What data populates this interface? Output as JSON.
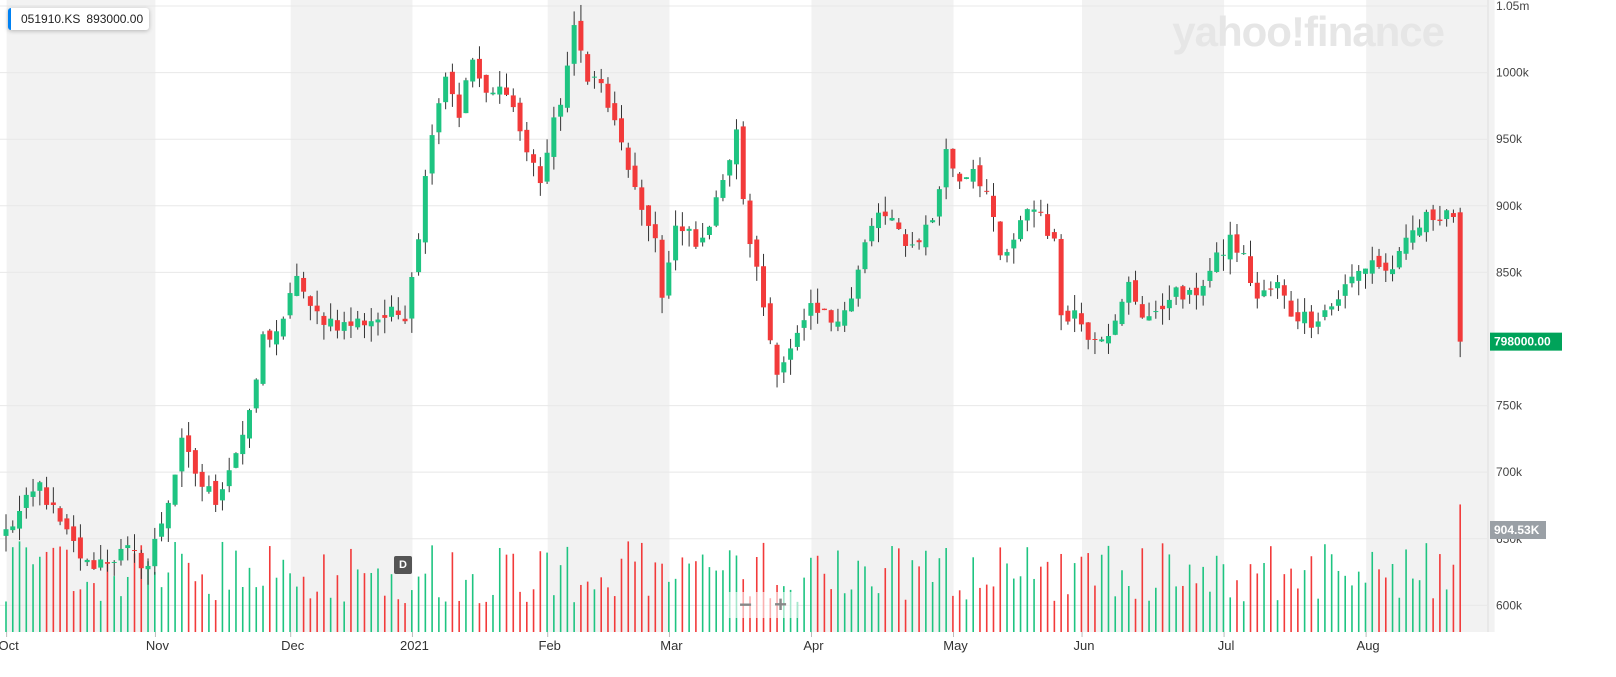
{
  "legend": {
    "symbol": "051910.KS",
    "price": "893000.00",
    "accent": "#0081f2"
  },
  "logo": "yahoo!finance",
  "interval_badge": "D",
  "zoom": {
    "minus": "−",
    "plus": "+"
  },
  "price_tag": {
    "label": "798000.00",
    "color": "#00a35a"
  },
  "volume_tag": {
    "label": "904.53K",
    "color": "#9aa0a6"
  },
  "colors": {
    "up": "#1ec481",
    "down": "#f23a3a",
    "band": "#f2f2f2"
  },
  "chart_data": {
    "type": "candlestick",
    "y_ticks": [
      "1.05m",
      "1000k",
      "950k",
      "900k",
      "850k",
      "750k",
      "700k",
      "650k",
      "600k"
    ],
    "y_tick_values": [
      1050000,
      1000000,
      950000,
      900000,
      850000,
      750000,
      700000,
      650000,
      600000
    ],
    "ylim": [
      580000,
      1050000
    ],
    "x_labels": [
      "Oct",
      "Nov",
      "Dec",
      "2021",
      "Feb",
      "Mar",
      "Apr",
      "May",
      "Jun",
      "Jul",
      "Aug"
    ],
    "x_label_days": [
      0,
      22,
      42,
      60,
      80,
      98,
      119,
      140,
      159,
      180,
      201
    ],
    "total_days": 220,
    "last_close": 798000,
    "last_volume_label": "904.53K",
    "anchors": [
      [
        0,
        655000
      ],
      [
        5,
        690000
      ],
      [
        8,
        660000
      ],
      [
        12,
        630000
      ],
      [
        18,
        640000
      ],
      [
        21,
        630000
      ],
      [
        24,
        680000
      ],
      [
        26,
        720000
      ],
      [
        29,
        690000
      ],
      [
        31,
        680000
      ],
      [
        36,
        740000
      ],
      [
        38,
        800000
      ],
      [
        41,
        810000
      ],
      [
        43,
        850000
      ],
      [
        45,
        820000
      ],
      [
        50,
        810000
      ],
      [
        54,
        815000
      ],
      [
        59,
        820000
      ],
      [
        61,
        880000
      ],
      [
        63,
        960000
      ],
      [
        65,
        1000000
      ],
      [
        67,
        970000
      ],
      [
        69,
        1010000
      ],
      [
        71,
        980000
      ],
      [
        74,
        990000
      ],
      [
        77,
        940000
      ],
      [
        79,
        920000
      ],
      [
        82,
        980000
      ],
      [
        84,
        1030000
      ],
      [
        86,
        1000000
      ],
      [
        88,
        990000
      ],
      [
        90,
        960000
      ],
      [
        92,
        930000
      ],
      [
        94,
        890000
      ],
      [
        96,
        880000
      ],
      [
        97,
        830000
      ],
      [
        99,
        880000
      ],
      [
        101,
        880000
      ],
      [
        103,
        870000
      ],
      [
        105,
        910000
      ],
      [
        107,
        930000
      ],
      [
        108,
        960000
      ],
      [
        109,
        900000
      ],
      [
        111,
        850000
      ],
      [
        113,
        800000
      ],
      [
        114,
        780000
      ],
      [
        116,
        790000
      ],
      [
        119,
        820000
      ],
      [
        122,
        815000
      ],
      [
        125,
        830000
      ],
      [
        127,
        870000
      ],
      [
        129,
        895000
      ],
      [
        132,
        880000
      ],
      [
        134,
        870000
      ],
      [
        137,
        890000
      ],
      [
        139,
        940000
      ],
      [
        141,
        920000
      ],
      [
        143,
        930000
      ],
      [
        145,
        910000
      ],
      [
        147,
        860000
      ],
      [
        149,
        870000
      ],
      [
        151,
        900000
      ],
      [
        153,
        895000
      ],
      [
        155,
        870000
      ],
      [
        156,
        820000
      ],
      [
        158,
        820000
      ],
      [
        160,
        805000
      ],
      [
        162,
        805000
      ],
      [
        164,
        810000
      ],
      [
        166,
        840000
      ],
      [
        168,
        820000
      ],
      [
        170,
        815000
      ],
      [
        172,
        835000
      ],
      [
        175,
        830000
      ],
      [
        178,
        850000
      ],
      [
        181,
        875000
      ],
      [
        183,
        860000
      ],
      [
        185,
        830000
      ],
      [
        188,
        840000
      ],
      [
        190,
        820000
      ],
      [
        193,
        815000
      ],
      [
        196,
        825000
      ],
      [
        199,
        845000
      ],
      [
        202,
        860000
      ],
      [
        204,
        850000
      ],
      [
        206,
        860000
      ],
      [
        208,
        880000
      ],
      [
        210,
        890000
      ],
      [
        212,
        895000
      ],
      [
        213,
        898000
      ],
      [
        214,
        893000
      ],
      [
        215,
        798000
      ]
    ],
    "volume_ylim": [
      0,
      1100000
    ]
  }
}
